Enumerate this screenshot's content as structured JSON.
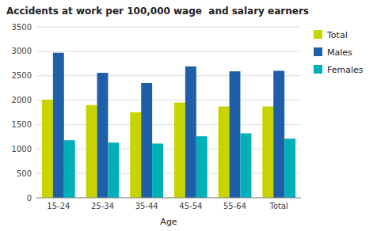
{
  "chart_data": {
    "type": "bar",
    "title": "Accidents at work per 100,000 wage  and salary earners",
    "xlabel": "Age",
    "categories": [
      "15-24",
      "25-34",
      "35-44",
      "45-54",
      "55-64",
      "Total"
    ],
    "series": [
      {
        "name": "Total",
        "color": "#c8d400",
        "values": [
          2010,
          1900,
          1750,
          1950,
          1870,
          1870
        ]
      },
      {
        "name": "Males",
        "color": "#1f5ea8",
        "values": [
          2970,
          2560,
          2350,
          2690,
          2590,
          2600
        ]
      },
      {
        "name": "Females",
        "color": "#00b0b9",
        "values": [
          1180,
          1130,
          1110,
          1260,
          1320,
          1210
        ]
      }
    ],
    "ylim": [
      0,
      3500
    ],
    "yticks": [
      0,
      500,
      1000,
      1500,
      2000,
      2500,
      3000,
      3500
    ],
    "grid": true,
    "legend": "right"
  }
}
